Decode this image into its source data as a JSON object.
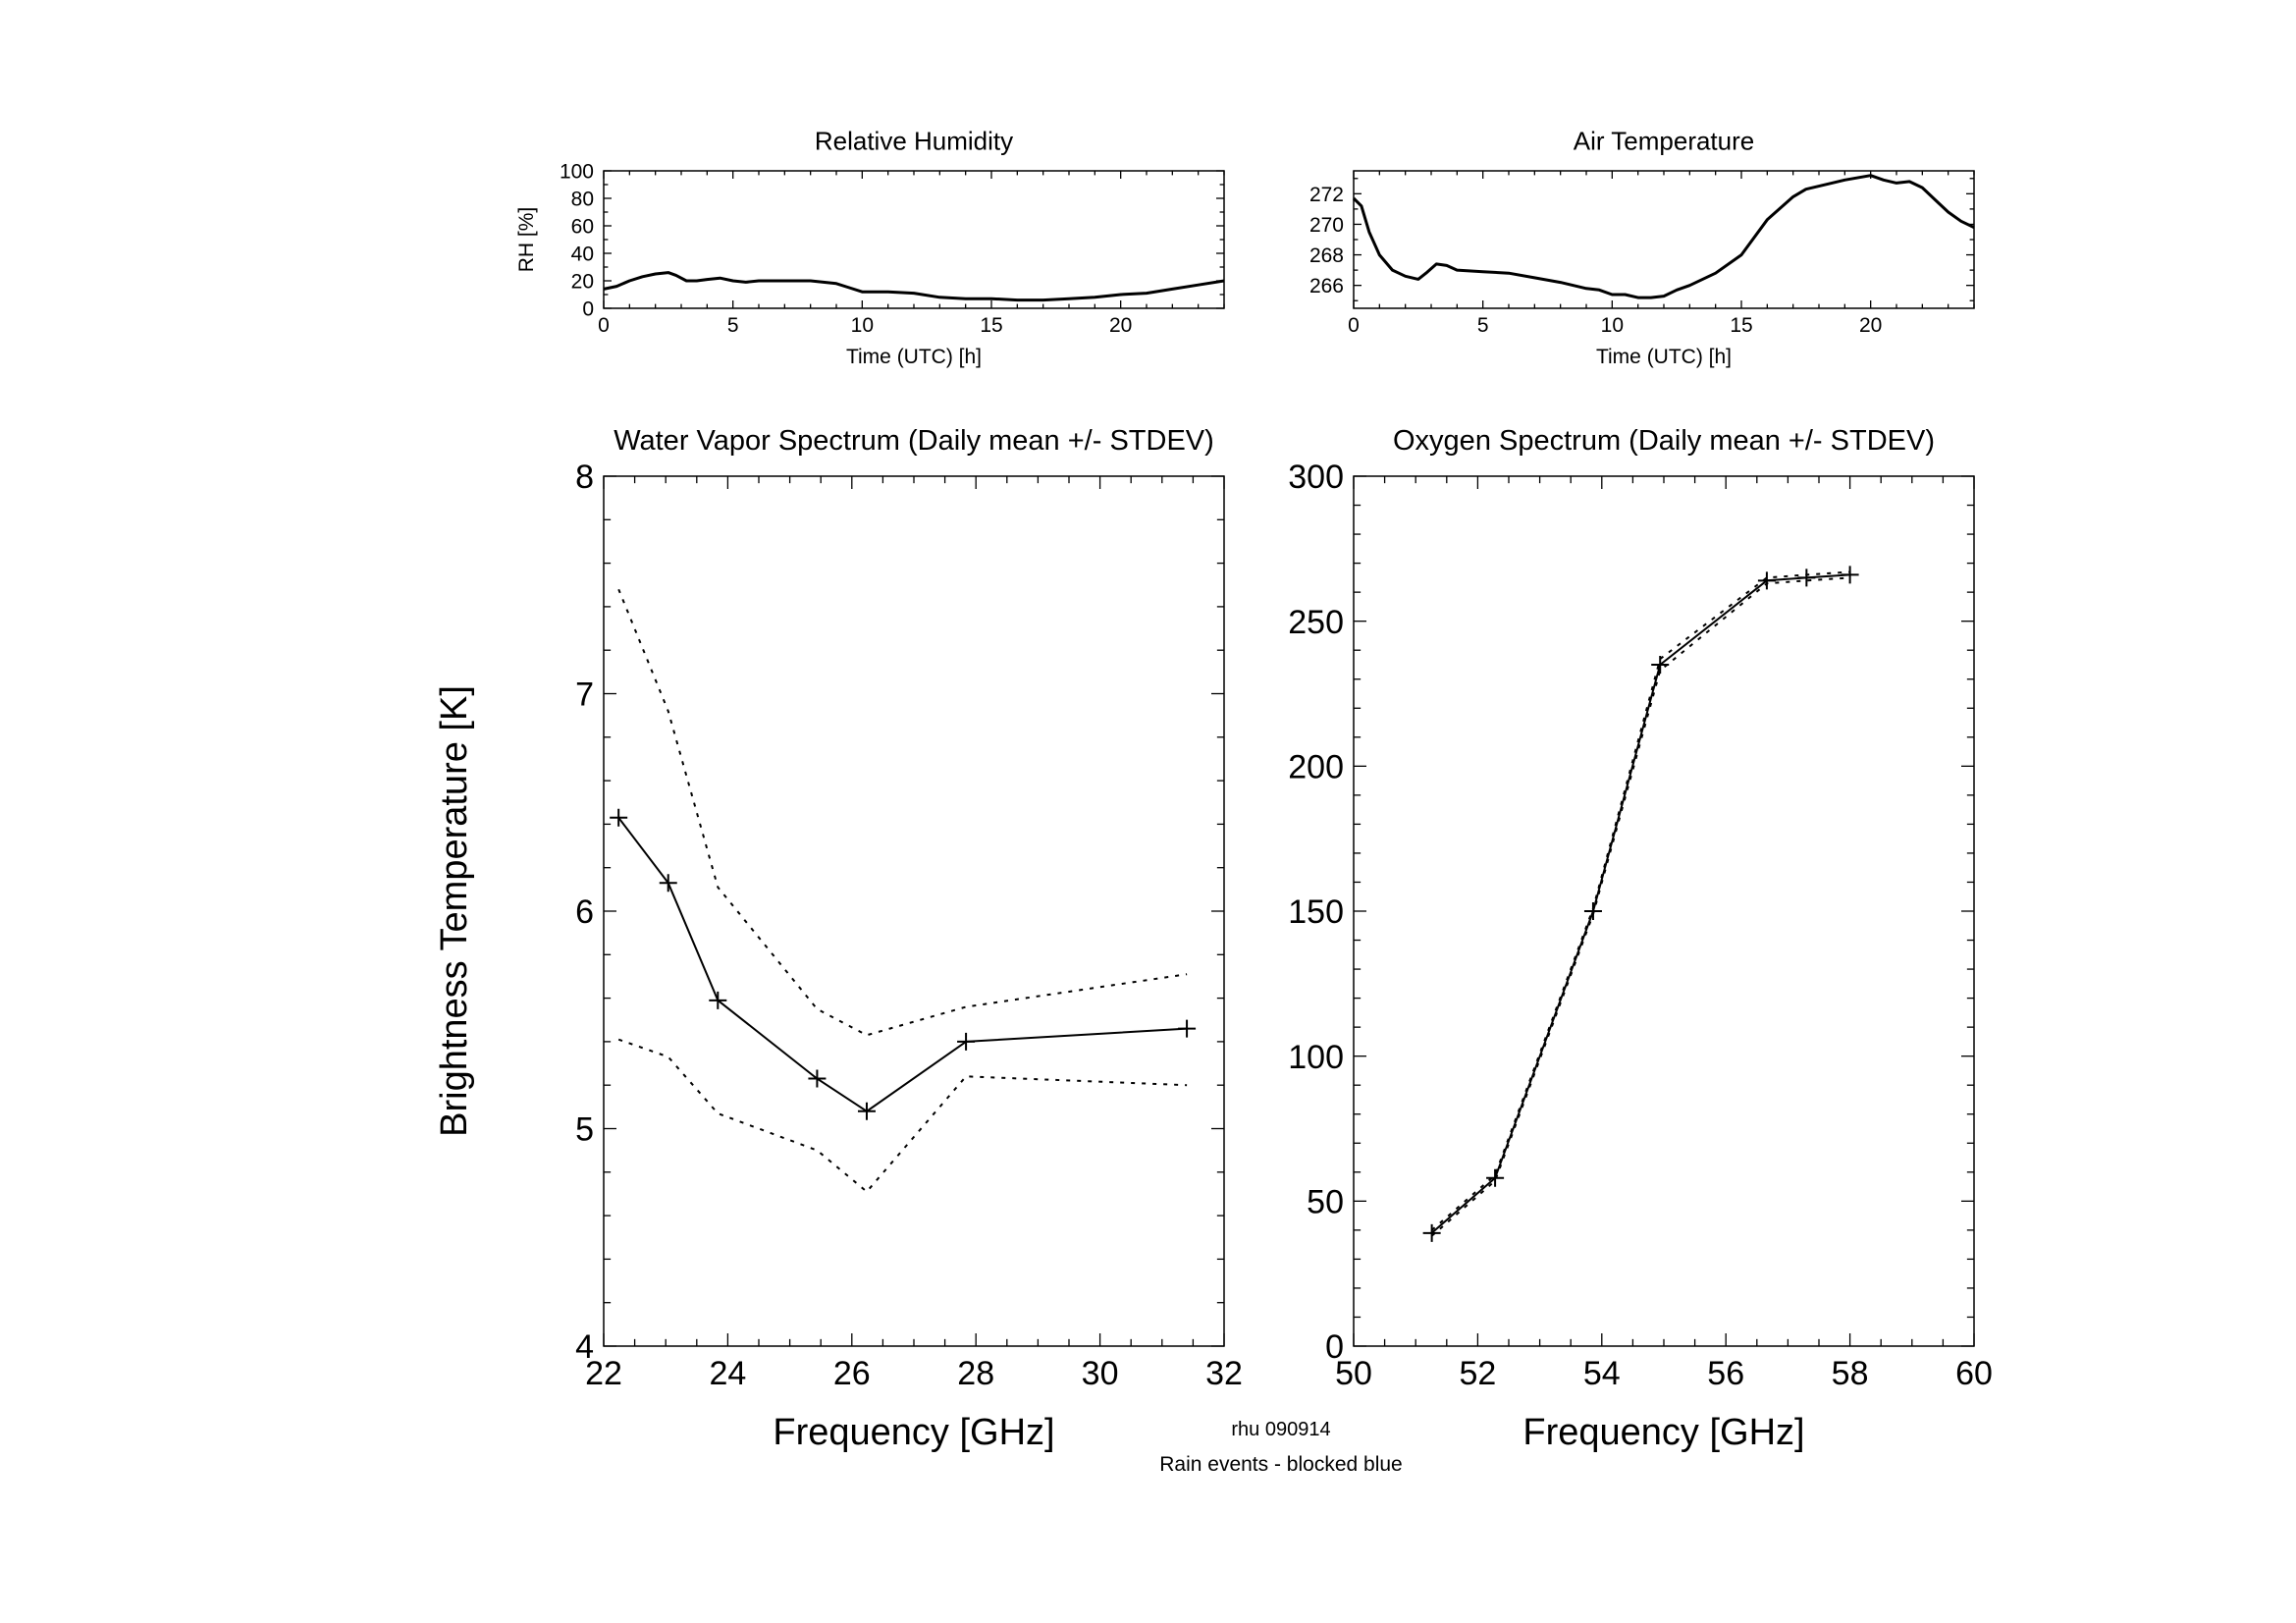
{
  "footer": {
    "id_label": "rhu 090914",
    "note": "Rain events - blocked blue",
    "note_color": "#00ffff"
  },
  "chart_data": [
    {
      "id": "rh",
      "type": "line",
      "title": "Relative Humidity",
      "xlabel": "Time (UTC) [h]",
      "ylabel": "RH [%]",
      "xlim": [
        0,
        24
      ],
      "ylim": [
        0,
        100
      ],
      "xticks": [
        0,
        5,
        10,
        15,
        20
      ],
      "xtick_labels": [
        "0",
        "5",
        "10",
        "15",
        "20"
      ],
      "yticks": [
        0,
        20,
        40,
        60,
        80,
        100
      ],
      "ytick_labels": [
        "0",
        "20",
        "40",
        "60",
        "80",
        "100"
      ],
      "series": [
        {
          "x": [
            0,
            0.5,
            1,
            1.5,
            2,
            2.5,
            2.8,
            3.2,
            3.6,
            4,
            4.5,
            5,
            5.5,
            6,
            7,
            8,
            9,
            9.5,
            10,
            11,
            12,
            13,
            14,
            15,
            16,
            17,
            18,
            19,
            20,
            21,
            22,
            23,
            24
          ],
          "y": [
            14,
            16,
            20,
            23,
            25,
            26,
            24,
            20,
            20,
            21,
            22,
            20,
            19,
            20,
            20,
            20,
            18,
            15,
            12,
            12,
            11,
            8,
            7,
            7,
            6,
            6,
            7,
            8,
            10,
            11,
            14,
            17,
            20
          ]
        }
      ]
    },
    {
      "id": "temp",
      "type": "line",
      "title": "Air Temperature",
      "xlabel": "Time (UTC) [h]",
      "ylabel": "",
      "xlim": [
        0,
        24
      ],
      "ylim": [
        264.5,
        273.5
      ],
      "xticks": [
        0,
        5,
        10,
        15,
        20
      ],
      "xtick_labels": [
        "0",
        "5",
        "10",
        "15",
        "20"
      ],
      "yticks": [
        266,
        268,
        270,
        272
      ],
      "ytick_labels": [
        "266",
        "268",
        "270",
        "272"
      ],
      "series": [
        {
          "x": [
            0,
            0.3,
            0.6,
            1,
            1.5,
            2,
            2.5,
            2.8,
            3.2,
            3.6,
            4,
            5,
            6,
            7,
            8,
            9,
            9.5,
            10,
            10.5,
            11,
            11.5,
            12,
            12.5,
            13,
            14,
            15,
            16,
            17,
            17.5,
            18,
            18.5,
            19,
            20,
            20.5,
            21,
            21.5,
            22,
            22.5,
            23,
            23.5,
            24
          ],
          "y": [
            271.7,
            271.2,
            269.5,
            268,
            267,
            266.6,
            266.4,
            266.8,
            267.4,
            267.3,
            267,
            266.9,
            266.8,
            266.5,
            266.2,
            265.8,
            265.7,
            265.4,
            265.4,
            265.2,
            265.2,
            265.3,
            265.7,
            266.0,
            266.8,
            268.0,
            270.3,
            271.8,
            272.3,
            272.5,
            272.7,
            272.9,
            273.2,
            272.9,
            272.7,
            272.8,
            272.4,
            271.6,
            270.8,
            270.2,
            269.8
          ]
        }
      ]
    },
    {
      "id": "wv",
      "type": "line",
      "title": "Water Vapor Spectrum (Daily mean +/- STDEV)",
      "xlabel": "Frequency [GHz]",
      "ylabel": "Brightness Temperature [K]",
      "xlim": [
        22,
        32
      ],
      "ylim": [
        4,
        8
      ],
      "xticks": [
        22,
        24,
        26,
        28,
        30,
        32
      ],
      "xtick_labels": [
        "22",
        "24",
        "26",
        "28",
        "30",
        "32"
      ],
      "yticks": [
        4,
        5,
        6,
        7,
        8
      ],
      "ytick_labels": [
        "4",
        "5",
        "6",
        "7",
        "8"
      ],
      "series": [
        {
          "role": "mean",
          "x": [
            22.24,
            23.04,
            23.84,
            25.44,
            26.24,
            27.84,
            31.4
          ],
          "y": [
            6.43,
            6.13,
            5.59,
            5.23,
            5.08,
            5.4,
            5.46
          ]
        },
        {
          "role": "upper",
          "x": [
            22.24,
            23.04,
            23.84,
            25.44,
            26.24,
            27.84,
            31.4
          ],
          "y": [
            7.48,
            6.92,
            6.11,
            5.55,
            5.43,
            5.56,
            5.71
          ]
        },
        {
          "role": "lower",
          "x": [
            22.24,
            23.04,
            23.84,
            25.44,
            26.24,
            27.84,
            31.4
          ],
          "y": [
            5.41,
            5.33,
            5.07,
            4.9,
            4.71,
            5.24,
            5.2
          ]
        }
      ]
    },
    {
      "id": "ox",
      "type": "line",
      "title": "Oxygen Spectrum (Daily mean +/- STDEV)",
      "xlabel": "Frequency [GHz]",
      "ylabel": "",
      "xlim": [
        50,
        60
      ],
      "ylim": [
        0,
        300
      ],
      "xticks": [
        50,
        52,
        54,
        56,
        58,
        60
      ],
      "xtick_labels": [
        "50",
        "52",
        "54",
        "56",
        "58",
        "60"
      ],
      "yticks": [
        0,
        50,
        100,
        150,
        200,
        250,
        300
      ],
      "ytick_labels": [
        "0",
        "50",
        "100",
        "150",
        "200",
        "250",
        "300"
      ],
      "series": [
        {
          "role": "mean",
          "x": [
            51.26,
            52.28,
            53.86,
            54.94,
            56.66,
            57.3,
            58.0
          ],
          "y": [
            39,
            58,
            150,
            235,
            264,
            265,
            266
          ]
        },
        {
          "role": "upper",
          "x": [
            51.26,
            52.28,
            53.86,
            54.94,
            56.66,
            57.3,
            58.0
          ],
          "y": [
            40,
            59,
            151,
            237,
            265,
            266,
            267
          ]
        },
        {
          "role": "lower",
          "x": [
            51.26,
            52.28,
            53.86,
            54.94,
            56.66,
            57.3,
            58.0
          ],
          "y": [
            38,
            57,
            149,
            233,
            263,
            264,
            265
          ]
        }
      ]
    }
  ]
}
